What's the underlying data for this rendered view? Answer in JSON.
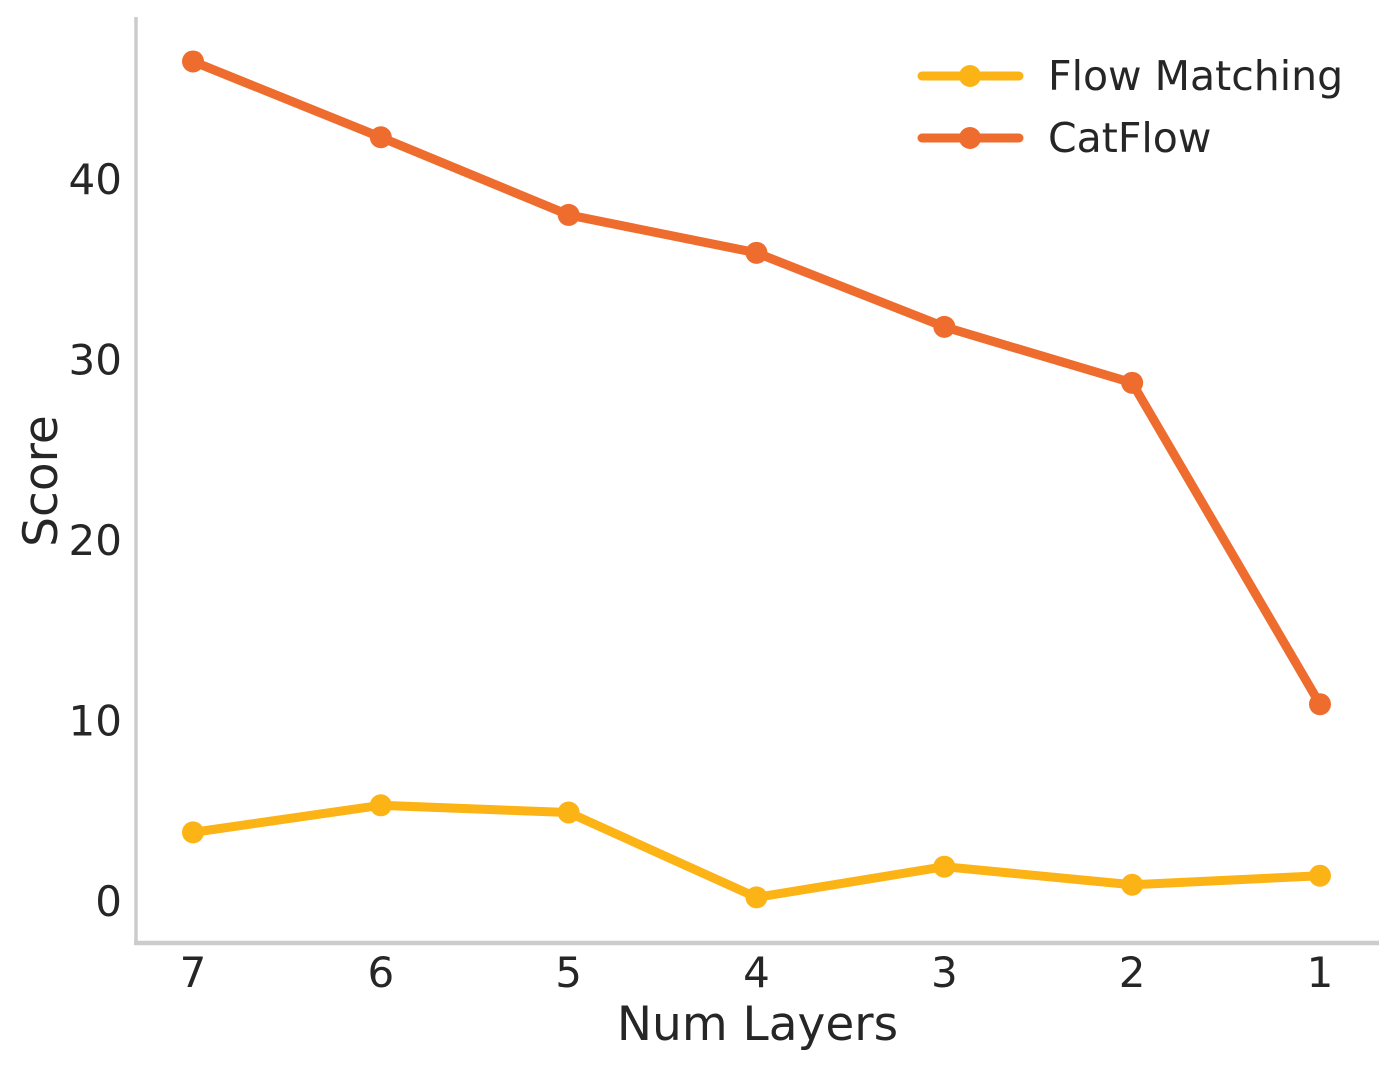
{
  "chart_data": {
    "type": "line",
    "title": "",
    "xlabel": "Num Layers",
    "ylabel": "Score",
    "x": [
      7,
      6,
      5,
      4,
      3,
      2,
      1
    ],
    "x_axis_reversed": true,
    "yticks": [
      0,
      10,
      20,
      30,
      40
    ],
    "ylim": [
      -2.3,
      48.9
    ],
    "grid": false,
    "legend": {
      "position": "upper right",
      "frame": false
    },
    "series": [
      {
        "name": "Flow Matching",
        "color": "#FCB315",
        "values": [
          3.8,
          5.3,
          4.9,
          0.2,
          1.9,
          0.9,
          1.4
        ]
      },
      {
        "name": "CatFlow",
        "color": "#EE6C2D",
        "values": [
          46.5,
          42.3,
          38.0,
          35.9,
          31.8,
          28.7,
          10.9
        ]
      }
    ],
    "colors": {
      "spine": "#CCCCCC",
      "text": "#262626",
      "background": "#FFFFFF"
    }
  }
}
